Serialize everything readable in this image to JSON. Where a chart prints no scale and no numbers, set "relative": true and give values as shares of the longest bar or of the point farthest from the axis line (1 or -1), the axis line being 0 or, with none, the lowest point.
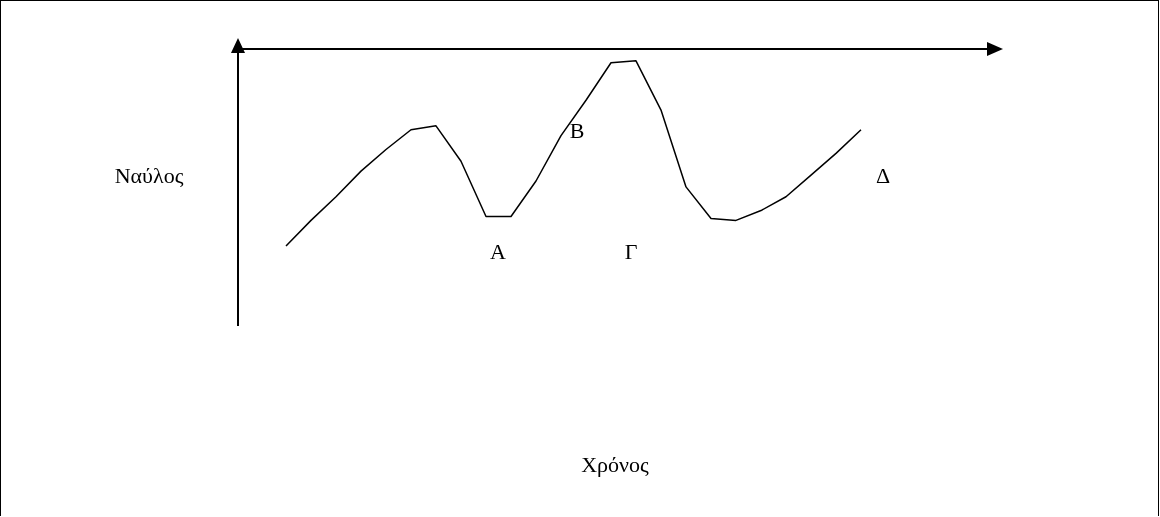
{
  "chart_data": {
    "type": "line",
    "relative": true,
    "ylabel": "Ναύλος",
    "categories": [
      null,
      null,
      null,
      null,
      null,
      null,
      null,
      null,
      null,
      null,
      null,
      null,
      null,
      null,
      null,
      null,
      null,
      null,
      null,
      null,
      null,
      null,
      null,
      null
    ],
    "series": [
      {
        "color": "#000000",
        "values": [
          -1,
          -0.87,
          -0.75,
          -0.62,
          -0.51,
          -0.41,
          -0.39,
          -0.57,
          -0.85,
          -0.85,
          -0.67,
          -0.44,
          -0.26,
          -0.07,
          -0.06,
          -0.31,
          -0.7,
          -0.86,
          -0.87,
          -0.82,
          -0.75,
          -0.64,
          -0.53,
          -0.41
        ]
      }
    ],
    "annotations": [
      "A",
      "B",
      "Γ",
      "Δ",
      "Χρόνος"
    ],
    "marker": "none",
    "line_style": "solid",
    "grid": false,
    "legend": false
  }
}
